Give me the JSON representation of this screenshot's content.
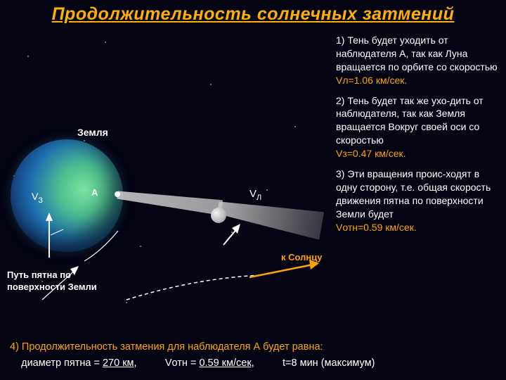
{
  "title": {
    "text": "Продолжительность солнечных затмений",
    "color": "#ffb000",
    "fontsize": 25
  },
  "diagram": {
    "earth_label": "Земля",
    "pointA_label": "A",
    "vz_label_html": "V<span class='sublab'>З</span>",
    "vl_label_html": "V<span class='sublab'>Л</span>",
    "path_label": "Путь пятна по\nповерхности Земли",
    "to_sun_label": "к Солнцу",
    "earth_colors": [
      "#7de0a0",
      "#4fc090",
      "#1e6faf",
      "#153a7a",
      "#0e1840"
    ],
    "moon_colors": [
      "#f0f0f0",
      "#b8b8b8",
      "#808080"
    ],
    "shadow_color": "rgba(190,190,190,0.85)",
    "arrow_color_white": "#ffffff",
    "arrow_color_orange": "#ffa500",
    "orbit_dash_color": "#ffffff"
  },
  "explanations": {
    "p1": "1)   Тень будет уходить от наблюдателя А, так как Луна вращается по орбите со скоростью",
    "p1_speed": "Vл=1.06 км/сек.",
    "p2": "2) Тень будет так же ухо-дить от наблюдателя, так как Земля вращается Вокруг своей оси со скоростью",
    "p2_speed": "Vз=0.47 км/сек.",
    "p3": "3) Эти вращения проис-ходят в одну сторону, т.е. общая скорость движения пятна по поверхности Земли будет",
    "p3_speed": "Vотн=0.59 км/сек."
  },
  "bottom": {
    "line1": "4) Продолжительность затмения для наблюдателя А будет равна:",
    "diam_label": "диаметр пятна =",
    "diam_value": "270 км,",
    "speed_label": "Vотн =",
    "speed_value": "0.59 км/сек,",
    "time_label": "t=8 мин (максимум)"
  },
  "style": {
    "bg": "#040412",
    "text_color": "#ffffff",
    "accent_color": "#ffa500",
    "body_fontsize": 14
  }
}
